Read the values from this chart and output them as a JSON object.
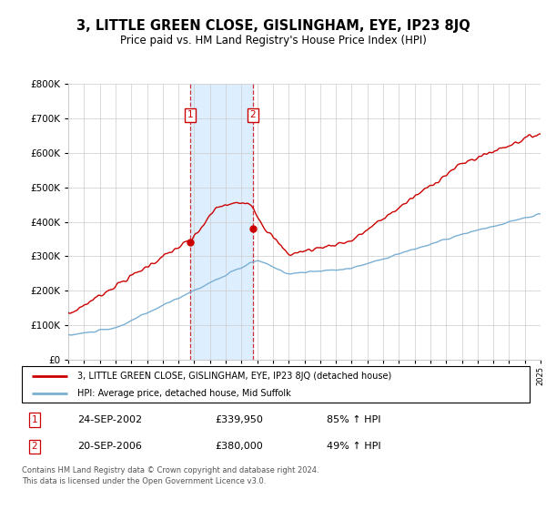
{
  "title": "3, LITTLE GREEN CLOSE, GISLINGHAM, EYE, IP23 8JQ",
  "subtitle": "Price paid vs. HM Land Registry's House Price Index (HPI)",
  "legend_line1": "3, LITTLE GREEN CLOSE, GISLINGHAM, EYE, IP23 8JQ (detached house)",
  "legend_line2": "HPI: Average price, detached house, Mid Suffolk",
  "sale1_date": "24-SEP-2002",
  "sale1_price": 339950,
  "sale1_pct": "85% ↑ HPI",
  "sale2_date": "20-SEP-2006",
  "sale2_price": 380000,
  "sale2_pct": "49% ↑ HPI",
  "footer": "Contains HM Land Registry data © Crown copyright and database right 2024.\nThis data is licensed under the Open Government Licence v3.0.",
  "red_color": "#cc0000",
  "blue_color": "#7aafd4",
  "shade_color": "#ddeeff",
  "ylim": [
    0,
    800000
  ],
  "yticks": [
    0,
    100000,
    200000,
    300000,
    400000,
    500000,
    600000,
    700000,
    800000
  ],
  "xstart": 1995,
  "xend": 2025,
  "sale1_year": 2002.73,
  "sale2_year": 2006.73
}
